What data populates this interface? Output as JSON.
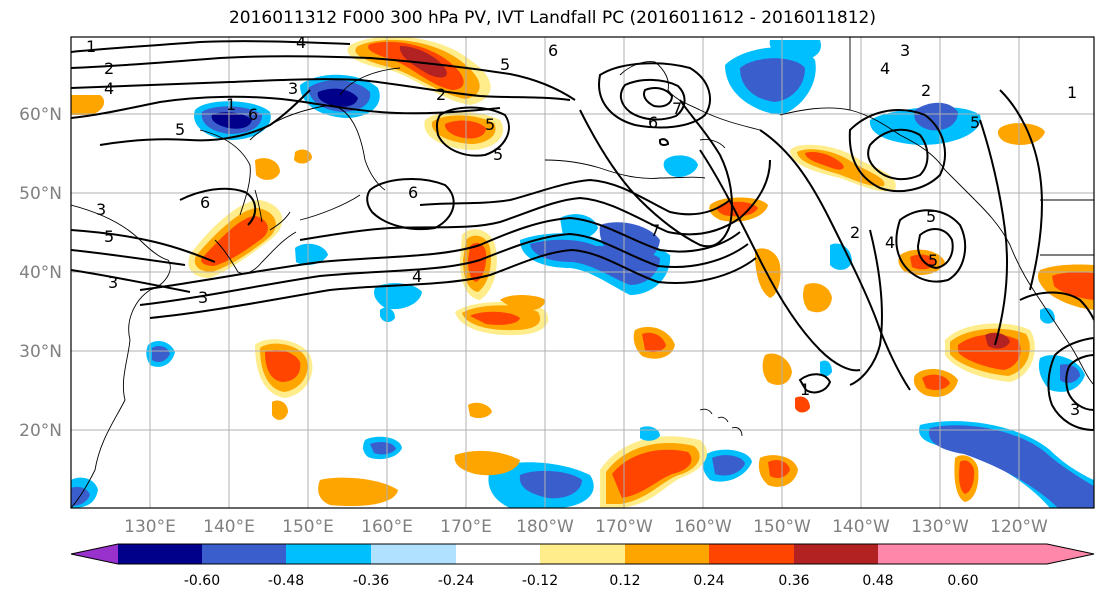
{
  "title": "2016011312 F000 300 hPa PV, IVT Landfall PC (2016011612 - 2016011812)",
  "lat_labels": [
    "60°N",
    "50°N",
    "40°N",
    "30°N",
    "20°N"
  ],
  "lon_labels": [
    "130°E",
    "140°E",
    "150°E",
    "160°E",
    "170°E",
    "180°W",
    "170°W",
    "160°W",
    "150°W",
    "140°W",
    "130°W",
    "120°W"
  ],
  "colorbar": {
    "colors": [
      "#9932CC",
      "#00008B",
      "#3A5FCD",
      "#00BFFF",
      "#B0E2FF",
      "#FFFFFF",
      "#FFEC8B",
      "#FFA500",
      "#FF4500",
      "#B22222",
      "#FF88AA"
    ],
    "tick_labels": [
      "-0.60",
      "-0.48",
      "-0.36",
      "-0.24",
      "-0.12",
      "0.12",
      "0.24",
      "0.36",
      "0.48",
      "0.60"
    ]
  },
  "contour_labels": [
    "1",
    "4",
    "2",
    "4",
    "3",
    "6",
    "5",
    "3",
    "4",
    "5",
    "6",
    "2",
    "3",
    "1",
    "5",
    "5",
    "6",
    "7",
    "6",
    "5",
    "6",
    "7",
    "2",
    "4",
    "5",
    "5",
    "3",
    "2",
    "1",
    "3",
    "5",
    "4",
    "3",
    "1"
  ]
}
